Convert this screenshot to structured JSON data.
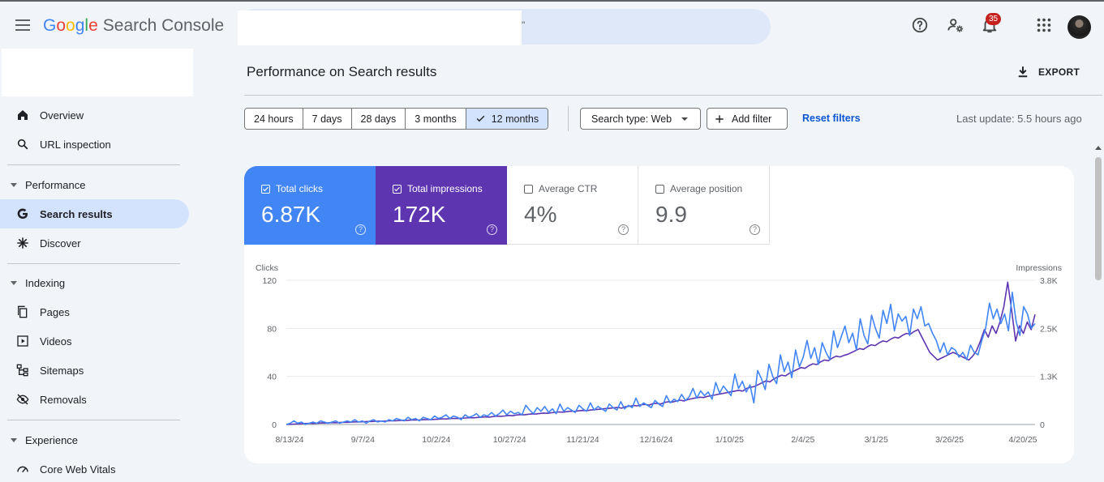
{
  "app": {
    "logo_letters": [
      "G",
      "o",
      "o",
      "g",
      "l",
      "e"
    ],
    "product_name": "Search Console",
    "search_quote": "\"",
    "notification_count": "35"
  },
  "sidebar": {
    "items": [
      {
        "label": "Overview",
        "icon": "home-icon"
      },
      {
        "label": "URL inspection",
        "icon": "search-icon"
      }
    ],
    "sections": [
      {
        "label": "Performance",
        "items": [
          {
            "label": "Search results",
            "icon": "google-g-icon",
            "active": true
          },
          {
            "label": "Discover",
            "icon": "asterisk-icon"
          }
        ]
      },
      {
        "label": "Indexing",
        "items": [
          {
            "label": "Pages",
            "icon": "pages-icon"
          },
          {
            "label": "Videos",
            "icon": "video-icon"
          },
          {
            "label": "Sitemaps",
            "icon": "sitemap-icon"
          },
          {
            "label": "Removals",
            "icon": "eye-off-icon"
          }
        ]
      },
      {
        "label": "Experience",
        "items": [
          {
            "label": "Core Web Vitals",
            "icon": "speed-icon"
          }
        ]
      }
    ]
  },
  "main": {
    "title": "Performance on Search results",
    "export_label": "EXPORT",
    "date_ranges": [
      "24 hours",
      "7 days",
      "28 days",
      "3 months",
      "12 months"
    ],
    "selected_range": "12 months",
    "search_type_label": "Search type: Web",
    "add_filter_label": "Add filter",
    "reset_filters_label": "Reset filters",
    "last_update": "Last update: 5.5 hours ago"
  },
  "metrics": {
    "clicks": {
      "label": "Total clicks",
      "value": "6.87K",
      "checked": true,
      "color": "#4285f4"
    },
    "impressions": {
      "label": "Total impressions",
      "value": "172K",
      "checked": true,
      "color": "#5e35b1"
    },
    "ctr": {
      "label": "Average CTR",
      "value": "4%",
      "checked": false
    },
    "position": {
      "label": "Average position",
      "value": "9.9",
      "checked": false
    }
  },
  "chart_data": {
    "type": "line",
    "left_axis": {
      "title": "Clicks",
      "ticks": [
        "120",
        "80",
        "40",
        "0"
      ],
      "ylim": [
        0,
        120
      ]
    },
    "right_axis": {
      "title": "Impressions",
      "ticks": [
        "3.8K",
        "2.5K",
        "1.3K",
        "0"
      ],
      "ylim": [
        0,
        3800
      ]
    },
    "x_ticks": [
      "8/13/24",
      "9/7/24",
      "10/2/24",
      "10/27/24",
      "11/21/24",
      "12/16/24",
      "1/10/25",
      "2/4/25",
      "3/1/25",
      "3/26/25",
      "4/20/25"
    ],
    "grid": true,
    "legend": "none",
    "series": [
      {
        "name": "Clicks",
        "axis": "left",
        "color": "#4285f4",
        "values": [
          0,
          1,
          3,
          1,
          2,
          0,
          1,
          2,
          1,
          3,
          2,
          1,
          2,
          3,
          1,
          2,
          3,
          2,
          4,
          2,
          3,
          1,
          3,
          4,
          2,
          3,
          2,
          4,
          3,
          5,
          4,
          3,
          6,
          4,
          5,
          3,
          6,
          5,
          4,
          7,
          5,
          6,
          8,
          5,
          7,
          6,
          4,
          8,
          6,
          7,
          9,
          6,
          8,
          7,
          10,
          7,
          9,
          12,
          8,
          11,
          9,
          10,
          8,
          16,
          12,
          9,
          14,
          11,
          15,
          10,
          13,
          9,
          17,
          11,
          14,
          12,
          10,
          16,
          13,
          11,
          18,
          12,
          15,
          13,
          11,
          17,
          14,
          12,
          19,
          13,
          16,
          14,
          22,
          15,
          18,
          16,
          14,
          20,
          17,
          15,
          24,
          18,
          21,
          19,
          25,
          20,
          23,
          30,
          22,
          28,
          24,
          27,
          21,
          35,
          26,
          32,
          28,
          24,
          42,
          30,
          36,
          27,
          33,
          18,
          45,
          38,
          29,
          50,
          40,
          34,
          58,
          44,
          52,
          39,
          62,
          48,
          56,
          70,
          55,
          64,
          50,
          68,
          60,
          54,
          78,
          64,
          73,
          82,
          68,
          76,
          62,
          88,
          74,
          67,
          91,
          80,
          72,
          95,
          84,
          100,
          78,
          92,
          86,
          90,
          74,
          96,
          88,
          98,
          82,
          84,
          76,
          70,
          60,
          68,
          58,
          64,
          62,
          56,
          60,
          54,
          66,
          60,
          58,
          70,
          80,
          101,
          88,
          96,
          84,
          92,
          78,
          110,
          86,
          74,
          98,
          92,
          80,
          84
        ]
      },
      {
        "name": "Impressions",
        "axis": "right",
        "color": "#5e35b1",
        "values": [
          0,
          5,
          10,
          15,
          20,
          25,
          30,
          28,
          35,
          40,
          38,
          45,
          50,
          48,
          55,
          60,
          58,
          65,
          70,
          68,
          75,
          80,
          78,
          85,
          90,
          88,
          95,
          100,
          98,
          105,
          110,
          108,
          115,
          120,
          118,
          125,
          130,
          128,
          135,
          140,
          150,
          145,
          155,
          160,
          158,
          165,
          170,
          180,
          175,
          185,
          190,
          200,
          195,
          210,
          220,
          215,
          225,
          240,
          230,
          250,
          260,
          255,
          270,
          280,
          275,
          290,
          300,
          295,
          310,
          320,
          330,
          325,
          340,
          350,
          345,
          360,
          370,
          365,
          380,
          390,
          400,
          410,
          420,
          430,
          440,
          450,
          430,
          470,
          480,
          500,
          490,
          520,
          530,
          510,
          550,
          560,
          540,
          580,
          600,
          590,
          620,
          640,
          620,
          660,
          680,
          700,
          720,
          710,
          740,
          760,
          780,
          800,
          820,
          840,
          860,
          880,
          900,
          880,
          950,
          980,
          1000,
          1050,
          1100,
          1150,
          1120,
          1200,
          1250,
          1300,
          1280,
          1350,
          1400,
          1450,
          1500,
          1480,
          1550,
          1600,
          1580,
          1650,
          1700,
          1680,
          1750,
          1800,
          1780,
          1820,
          1850,
          1900,
          1950,
          2000,
          1980,
          2050,
          2100,
          2080,
          2150,
          2200,
          2180,
          2250,
          2300,
          2280,
          2350,
          2400,
          2380,
          2450,
          2500,
          2300,
          2100,
          1900,
          1800,
          1700,
          1750,
          1800,
          1850,
          1900,
          1850,
          1800,
          1750,
          1700,
          1800,
          1950,
          2200,
          2500,
          2300,
          2600,
          2400,
          2700,
          3100,
          3750,
          3000,
          2200,
          2600,
          2400,
          2700,
          2500,
          2900
        ]
      }
    ]
  }
}
